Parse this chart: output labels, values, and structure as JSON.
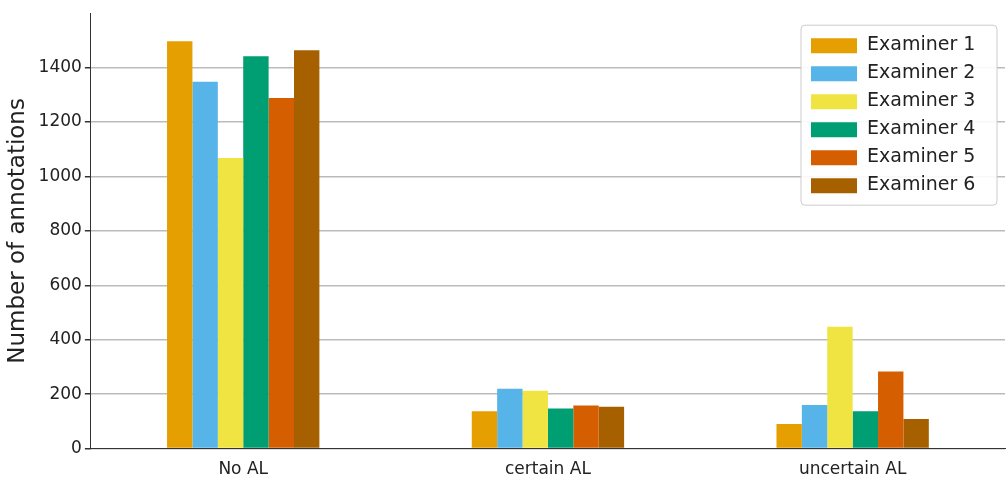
{
  "chart_data": {
    "type": "bar",
    "ylabel": "Number of annotations",
    "categories": [
      "No AL",
      "certain AL",
      "uncertain AL"
    ],
    "series": [
      {
        "name": "Examiner 1",
        "color": "#e69f00",
        "values": [
          1497,
          137,
          90
        ]
      },
      {
        "name": "Examiner 2",
        "color": "#56b4e9",
        "values": [
          1348,
          220,
          160
        ]
      },
      {
        "name": "Examiner 3",
        "color": "#f0e442",
        "values": [
          1068,
          213,
          448
        ]
      },
      {
        "name": "Examiner 4",
        "color": "#009e73",
        "values": [
          1442,
          147,
          137
        ]
      },
      {
        "name": "Examiner 5",
        "color": "#d55e00",
        "values": [
          1288,
          158,
          283
        ]
      },
      {
        "name": "Examiner 6",
        "color": "#a66000",
        "values": [
          1464,
          154,
          109
        ]
      }
    ],
    "ylim": [
      0,
      1600
    ],
    "yticks": [
      0,
      200,
      400,
      600,
      800,
      1000,
      1200,
      1400
    ],
    "grid": "y",
    "legend": "top right"
  }
}
